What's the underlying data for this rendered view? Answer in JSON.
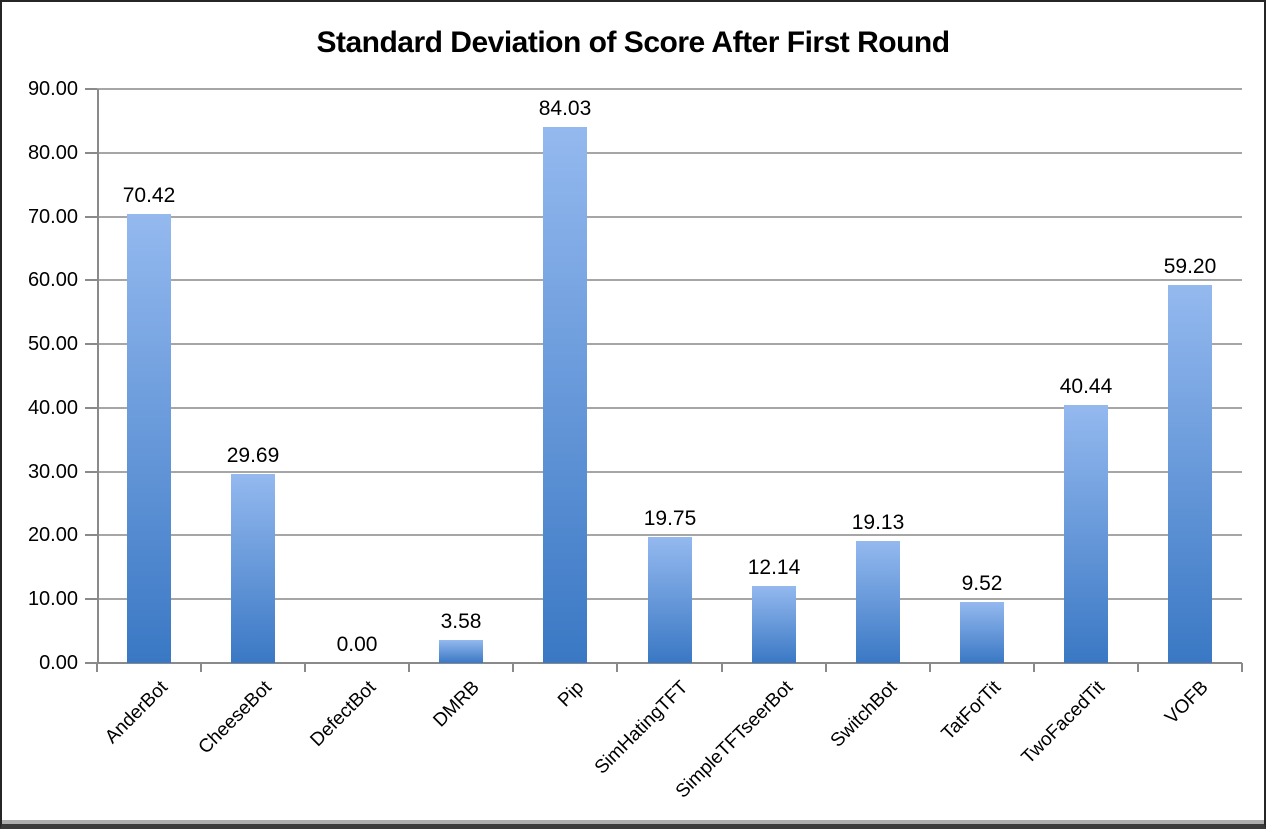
{
  "chart_data": {
    "type": "bar",
    "title": "Standard Deviation of Score After First Round",
    "categories": [
      "AnderBot",
      "CheeseBot",
      "DefectBot",
      "DMRB",
      "Pip",
      "SimHatingTFT",
      "SimpleTFTseerBot",
      "SwitchBot",
      "TatForTit",
      "TwoFacedTit",
      "VOFB"
    ],
    "values": [
      70.42,
      29.69,
      0.0,
      3.58,
      84.03,
      19.75,
      12.14,
      19.13,
      9.52,
      40.44,
      59.2
    ],
    "value_labels": [
      "70.42",
      "29.69",
      "0.00",
      "3.58",
      "84.03",
      "19.75",
      "12.14",
      "19.13",
      "9.52",
      "40.44",
      "59.20"
    ],
    "xlabel": "",
    "ylabel": "",
    "ylim": [
      0,
      90
    ],
    "ytick_step": 10,
    "ytick_labels": [
      "0.00",
      "10.00",
      "20.00",
      "30.00",
      "40.00",
      "50.00",
      "60.00",
      "70.00",
      "80.00",
      "90.00"
    ],
    "grid": true,
    "legend": false,
    "label_rotation_deg": -45,
    "colors": {
      "bar_gradient_top": "#94b9ef",
      "bar_gradient_bottom": "#3a78c4",
      "gridline": "#a6a6a6",
      "axis": "#8a8a8a",
      "title_text": "#000000",
      "background": "#ffffff",
      "frame_border": "#262626",
      "frame_bottom_shadow": "#adadad"
    }
  }
}
